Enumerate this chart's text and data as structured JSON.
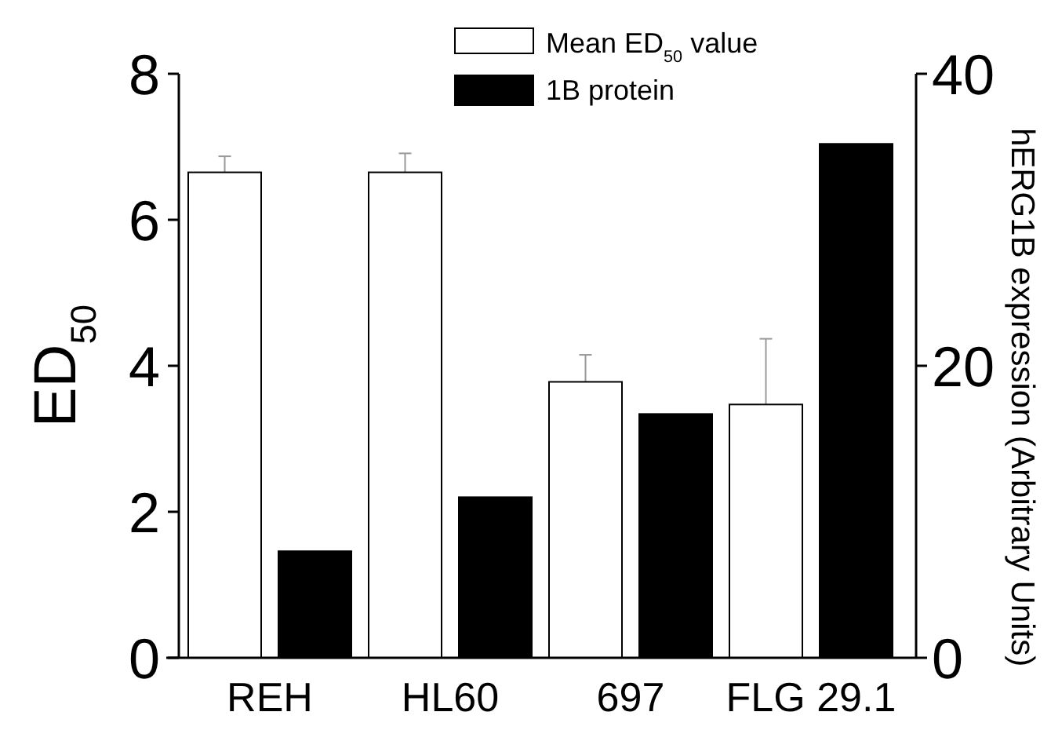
{
  "chart_data": {
    "type": "bar",
    "ylabel": "ED$_{50}$",
    "y2label": "hERG1B expression (Arbitrary Units)",
    "categories": [
      "REH",
      "HL60",
      "697",
      "FLG 29.1"
    ],
    "series": [
      {
        "name": "Mean ED$_{50}$ value",
        "color": "#ffffff",
        "values": [
          6.65,
          6.65,
          3.78,
          3.47
        ],
        "errors": [
          [
            6.65,
            6.87
          ],
          [
            6.65,
            6.91
          ],
          [
            3.78,
            4.15
          ],
          [
            3.47,
            4.37
          ]
        ]
      },
      {
        "name": "1B protein",
        "color": "#000000",
        "values": [
          7.3,
          11.0,
          16.7,
          35.2
        ],
        "axis": "y2"
      }
    ],
    "ylim": [
      0,
      8
    ],
    "yticks": [
      0,
      2,
      4,
      6,
      8
    ],
    "y2lim": [
      0,
      40
    ],
    "y2ticks": [
      0,
      20,
      40
    ],
    "legend": "top",
    "grid": false
  }
}
